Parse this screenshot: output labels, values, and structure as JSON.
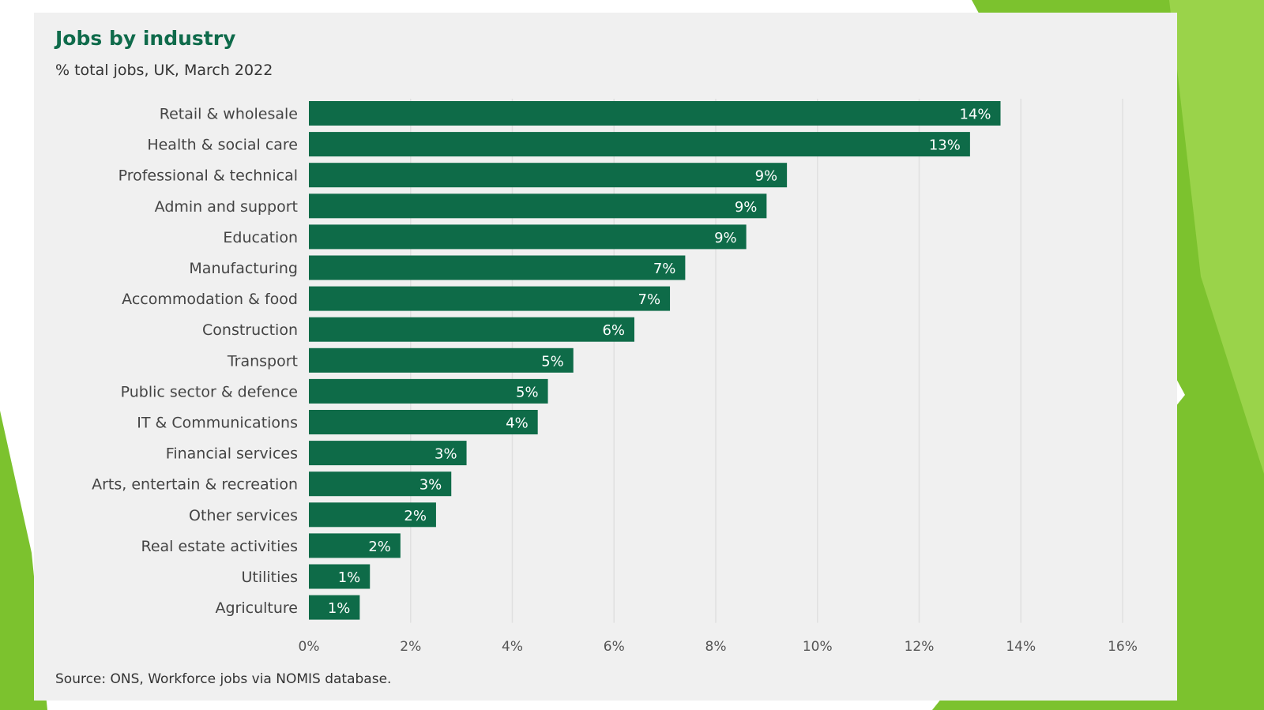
{
  "colors": {
    "bar": "#0e6b48",
    "accent_green": "#7cc22e",
    "card_bg": "#f0f0f0",
    "title": "#0f6b4b"
  },
  "chart_data": {
    "type": "bar",
    "orientation": "horizontal",
    "title": "Jobs by industry",
    "subtitle": "% total jobs, UK, March 2022",
    "source": "Source: ONS, Workforce jobs via NOMIS database.",
    "categories": [
      "Retail & wholesale",
      "Health & social care",
      "Professional & technical",
      "Admin and support",
      "Education",
      "Manufacturing",
      "Accommodation & food",
      "Construction",
      "Transport",
      "Public sector & defence",
      "IT & Communications",
      "Financial services",
      "Arts, entertain & recreation",
      "Other services",
      "Real estate activities",
      "Utilities",
      "Agriculture"
    ],
    "values": [
      13.6,
      13.0,
      9.4,
      9.0,
      8.6,
      7.4,
      7.1,
      6.4,
      5.2,
      4.7,
      4.5,
      3.1,
      2.8,
      2.5,
      1.8,
      1.2,
      1.0
    ],
    "value_labels": [
      "14%",
      "13%",
      "9%",
      "9%",
      "9%",
      "7%",
      "7%",
      "6%",
      "5%",
      "5%",
      "4%",
      "3%",
      "3%",
      "2%",
      "2%",
      "1%",
      "1%"
    ],
    "xlim": [
      0,
      16
    ],
    "xticks": [
      0,
      2,
      4,
      6,
      8,
      10,
      12,
      14,
      16
    ],
    "xtick_labels": [
      "0%",
      "2%",
      "4%",
      "6%",
      "8%",
      "10%",
      "12%",
      "14%",
      "16%"
    ],
    "grid": true
  }
}
